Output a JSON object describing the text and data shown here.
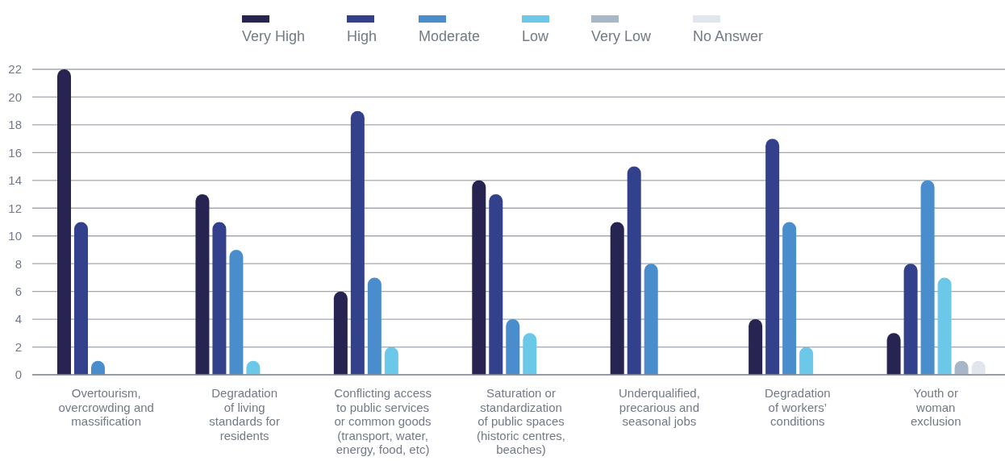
{
  "chart_data": {
    "type": "bar",
    "categories": [
      "Overtourism,\novercrowding and\nmassification",
      "Degradation\nof living\nstandards for\nresidents",
      "Conflicting access\nto public services\nor common goods\n(transport, water,\nenergy, food, etc)",
      "Saturation or\nstandardization\nof public spaces\n(historic centres,\nbeaches)",
      "Underqualified,\nprecarious and\nseasonal jobs",
      "Degradation\nof workers’\nconditions",
      "Youth or\nwoman\nexclusion"
    ],
    "series": [
      {
        "name": "Very High",
        "color": "#272451",
        "values": [
          22,
          13,
          6,
          14,
          11,
          4,
          3
        ]
      },
      {
        "name": "High",
        "color": "#33418c",
        "values": [
          11,
          11,
          19,
          13,
          15,
          17,
          8
        ]
      },
      {
        "name": "Moderate",
        "color": "#4a8dcc",
        "values": [
          1,
          9,
          7,
          4,
          8,
          11,
          14
        ]
      },
      {
        "name": "Low",
        "color": "#6cc8e9",
        "values": [
          0,
          1,
          2,
          3,
          0,
          2,
          7
        ]
      },
      {
        "name": "Very Low",
        "color": "#a8b7c7",
        "values": [
          0,
          0,
          0,
          0,
          0,
          0,
          1
        ]
      },
      {
        "name": "No Answer",
        "color": "#e1e5ee",
        "values": [
          0,
          0,
          0,
          0,
          0,
          0,
          1
        ]
      }
    ],
    "ylim": [
      0,
      22
    ],
    "yticks": [
      0,
      2,
      4,
      6,
      8,
      10,
      12,
      14,
      16,
      18,
      20,
      22
    ],
    "grid": "y",
    "legend": "top"
  }
}
